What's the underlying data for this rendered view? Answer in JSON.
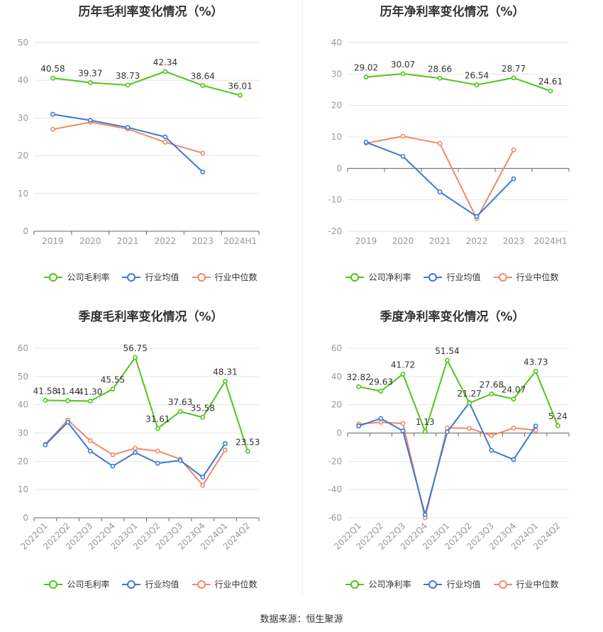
{
  "colors": {
    "company": "#52c41a",
    "avg": "#3c78d8",
    "median": "#f28a64",
    "grid": "#e6e6e6",
    "axis": "#999999"
  },
  "source_text": "数据来源：恒生聚源",
  "legend_avg": "行业均值",
  "legend_median": "行业中位数",
  "chart_data": [
    {
      "type": "line",
      "title": "历年毛利率变化情况（%）",
      "categories": [
        "2019",
        "2020",
        "2021",
        "2022",
        "2023",
        "2024H1"
      ],
      "ylim": [
        0,
        50
      ],
      "yticks": [
        0,
        10,
        20,
        30,
        40,
        50
      ],
      "rotate_x": false,
      "series": [
        {
          "name": "公司毛利率",
          "key": "company",
          "values": [
            40.58,
            39.37,
            38.73,
            42.34,
            38.64,
            36.01
          ],
          "labels": true
        },
        {
          "name": "行业均值",
          "key": "avg",
          "values": [
            31.0,
            29.4,
            27.5,
            25.0,
            15.7,
            null
          ]
        },
        {
          "name": "行业中位数",
          "key": "median",
          "values": [
            27.0,
            28.9,
            27.1,
            23.6,
            20.7,
            null
          ]
        }
      ]
    },
    {
      "type": "line",
      "title": "历年净利率变化情况（%）",
      "categories": [
        "2019",
        "2020",
        "2021",
        "2022",
        "2023",
        "2024H1"
      ],
      "ylim": [
        -20,
        40
      ],
      "yticks": [
        -20,
        -10,
        0,
        10,
        20,
        30,
        40
      ],
      "rotate_x": false,
      "series": [
        {
          "name": "公司净利率",
          "key": "company",
          "values": [
            29.02,
            30.07,
            28.66,
            26.54,
            28.77,
            24.61
          ],
          "labels": true
        },
        {
          "name": "行业均值",
          "key": "avg",
          "values": [
            8.3,
            3.8,
            -7.5,
            -15.3,
            -3.3,
            null
          ]
        },
        {
          "name": "行业中位数",
          "key": "median",
          "values": [
            8.0,
            10.2,
            7.9,
            -16.0,
            5.9,
            null
          ]
        }
      ]
    },
    {
      "type": "line",
      "title": "季度毛利率变化情况（%）",
      "categories": [
        "2022Q1",
        "2022Q2",
        "2022Q3",
        "2022Q4",
        "2023Q1",
        "2023Q2",
        "2023Q3",
        "2023Q4",
        "2024Q1",
        "2024Q2"
      ],
      "ylim": [
        0,
        60
      ],
      "yticks": [
        0,
        10,
        20,
        30,
        40,
        50,
        60
      ],
      "rotate_x": true,
      "series": [
        {
          "name": "公司毛利率",
          "key": "company",
          "values": [
            41.58,
            41.44,
            41.3,
            45.55,
            56.75,
            31.61,
            37.63,
            35.58,
            48.31,
            23.53
          ],
          "labels": true
        },
        {
          "name": "行业均值",
          "key": "avg",
          "values": [
            25.8,
            33.8,
            23.6,
            18.3,
            23.1,
            19.3,
            20.3,
            14.4,
            26.3,
            null
          ]
        },
        {
          "name": "行业中位数",
          "key": "median",
          "values": [
            26.0,
            34.6,
            27.3,
            22.3,
            24.6,
            23.6,
            20.8,
            11.5,
            24.0,
            null
          ]
        }
      ]
    },
    {
      "type": "line",
      "title": "季度净利率变化情况（%）",
      "categories": [
        "2022Q1",
        "2022Q2",
        "2022Q3",
        "2022Q4",
        "2023Q1",
        "2023Q2",
        "2023Q3",
        "2023Q4",
        "2024Q1",
        "2024Q2"
      ],
      "ylim": [
        -60,
        60
      ],
      "yticks": [
        -60,
        -40,
        -20,
        0,
        20,
        40,
        60
      ],
      "rotate_x": true,
      "series": [
        {
          "name": "公司净利率",
          "key": "company",
          "values": [
            32.82,
            29.63,
            41.72,
            1.13,
            51.54,
            21.27,
            27.68,
            24.07,
            43.73,
            5.24
          ],
          "labels": true
        },
        {
          "name": "行业均值",
          "key": "avg",
          "values": [
            5.0,
            10.3,
            1.5,
            -57.8,
            0.8,
            21.5,
            -12.3,
            -18.8,
            5.0,
            null
          ]
        },
        {
          "name": "行业中位数",
          "key": "median",
          "values": [
            6.3,
            7.6,
            6.8,
            -60.0,
            3.6,
            3.4,
            -1.8,
            3.6,
            2.0,
            null
          ]
        }
      ]
    }
  ]
}
